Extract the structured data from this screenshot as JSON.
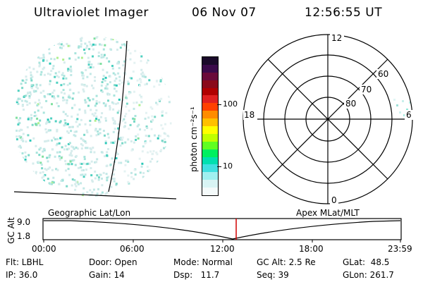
{
  "header": {
    "title": "Ultraviolet Imager",
    "date": "06 Nov 07",
    "time": "12:56:55 UT"
  },
  "colorbar": {
    "unit_label": "photon cm⁻²s⁻¹",
    "ticks": [
      "100",
      "10"
    ],
    "colors": [
      "#1a0a2a",
      "#3a0a4a",
      "#6a0a3a",
      "#8a0a1a",
      "#b00000",
      "#e02020",
      "#ff4000",
      "#ff8c00",
      "#ffc000",
      "#ffff00",
      "#c0ff00",
      "#60ff20",
      "#00f060",
      "#00e0b0",
      "#40e0e0",
      "#a0f0f0",
      "#d8f4f4",
      "#f4fafa"
    ]
  },
  "polar_plot": {
    "mlt_labels": {
      "top": "12",
      "left": "18",
      "right": "6",
      "bottom": "0"
    },
    "lat_labels": [
      "60",
      "70",
      "80"
    ]
  },
  "timeline": {
    "left_title": "Geographic Lat/Lon",
    "right_title": "Apex MLat/MLT",
    "y_axis_label": "GC Alt",
    "y_ticks": [
      "9.0",
      "1.8"
    ],
    "x_ticks": [
      "00:00",
      "06:00",
      "12:00",
      "18:00",
      "23:59"
    ],
    "marker_color": "#d00000"
  },
  "status": {
    "flt": "Flt: LBHL",
    "ip": "IP: 36.0",
    "door": "Door: Open",
    "gain": "Gain: 14",
    "mode": "Mode: Normal",
    "dsp": "Dsp:   11.7",
    "gc_alt": "GC Alt: 2.5 Re",
    "seq": "Seq: 39",
    "glat": "GLat:  48.5",
    "glon": "GLon: 261.7"
  }
}
